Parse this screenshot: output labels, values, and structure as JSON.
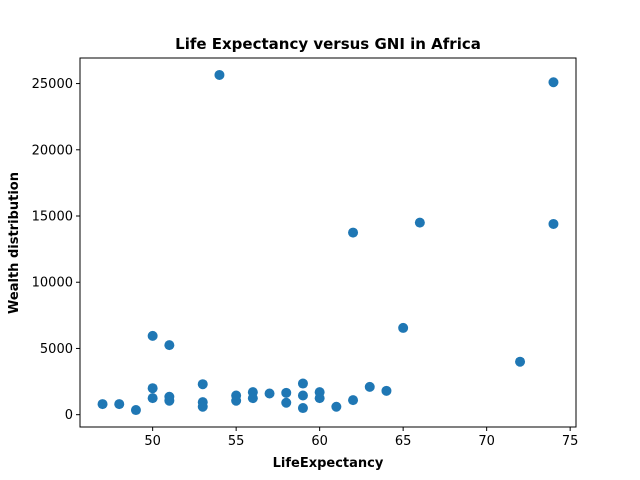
{
  "chart_data": {
    "type": "scatter",
    "title": "Life Expectancy versus GNI in Africa",
    "xlabel": "LifeExpectancy",
    "ylabel": "Wealth distribution",
    "xlim": [
      45.65,
      75.35
    ],
    "ylim": [
      -930,
      26930
    ],
    "xticks": [
      50,
      55,
      60,
      65,
      70,
      75
    ],
    "yticks": [
      0,
      5000,
      10000,
      15000,
      20000,
      25000
    ],
    "grid": false,
    "marker_color": "#1f77b4",
    "points": [
      {
        "x": 47,
        "y": 800
      },
      {
        "x": 48,
        "y": 800
      },
      {
        "x": 49,
        "y": 350
      },
      {
        "x": 50,
        "y": 5950
      },
      {
        "x": 50,
        "y": 2000
      },
      {
        "x": 50,
        "y": 1250
      },
      {
        "x": 51,
        "y": 5250
      },
      {
        "x": 51,
        "y": 1350
      },
      {
        "x": 51,
        "y": 1050
      },
      {
        "x": 53,
        "y": 2300
      },
      {
        "x": 53,
        "y": 950
      },
      {
        "x": 53,
        "y": 600
      },
      {
        "x": 54,
        "y": 25650
      },
      {
        "x": 55,
        "y": 1450
      },
      {
        "x": 55,
        "y": 1050
      },
      {
        "x": 56,
        "y": 1700
      },
      {
        "x": 56,
        "y": 1250
      },
      {
        "x": 57,
        "y": 1600
      },
      {
        "x": 58,
        "y": 1650
      },
      {
        "x": 58,
        "y": 900
      },
      {
        "x": 59,
        "y": 2350
      },
      {
        "x": 59,
        "y": 1450
      },
      {
        "x": 59,
        "y": 500
      },
      {
        "x": 60,
        "y": 1700
      },
      {
        "x": 60,
        "y": 1250
      },
      {
        "x": 61,
        "y": 600
      },
      {
        "x": 62,
        "y": 13750
      },
      {
        "x": 62,
        "y": 1100
      },
      {
        "x": 63,
        "y": 2100
      },
      {
        "x": 64,
        "y": 1800
      },
      {
        "x": 65,
        "y": 6550
      },
      {
        "x": 66,
        "y": 14500
      },
      {
        "x": 72,
        "y": 4000
      },
      {
        "x": 74,
        "y": 25100
      },
      {
        "x": 74,
        "y": 14400
      }
    ]
  }
}
